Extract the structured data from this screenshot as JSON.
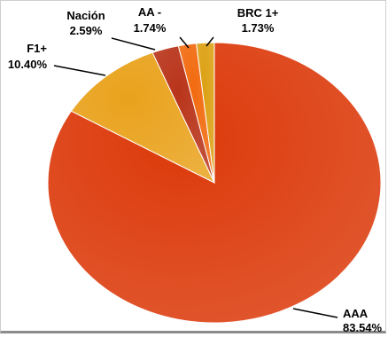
{
  "chart_data": {
    "type": "pie",
    "title": "",
    "slices": [
      {
        "label": "AAA",
        "value": 83.54,
        "value_text": "83.54%",
        "color": "#dc3a0b"
      },
      {
        "label": "F1+",
        "value": 10.4,
        "value_text": "10.40%",
        "color": "#e9a21c"
      },
      {
        "label": "Nación",
        "value": 2.59,
        "value_text": "2.59%",
        "color": "#b8341a"
      },
      {
        "label": "AA -",
        "value": 1.74,
        "value_text": "1.74%",
        "color": "#f26b10"
      },
      {
        "label": "BRC 1+",
        "value": 1.73,
        "value_text": "1.73%",
        "color": "#dca012"
      }
    ],
    "start_angle_deg": 0,
    "direction": "clockwise",
    "legend": "none",
    "data_labels": "outside with leader lines"
  }
}
